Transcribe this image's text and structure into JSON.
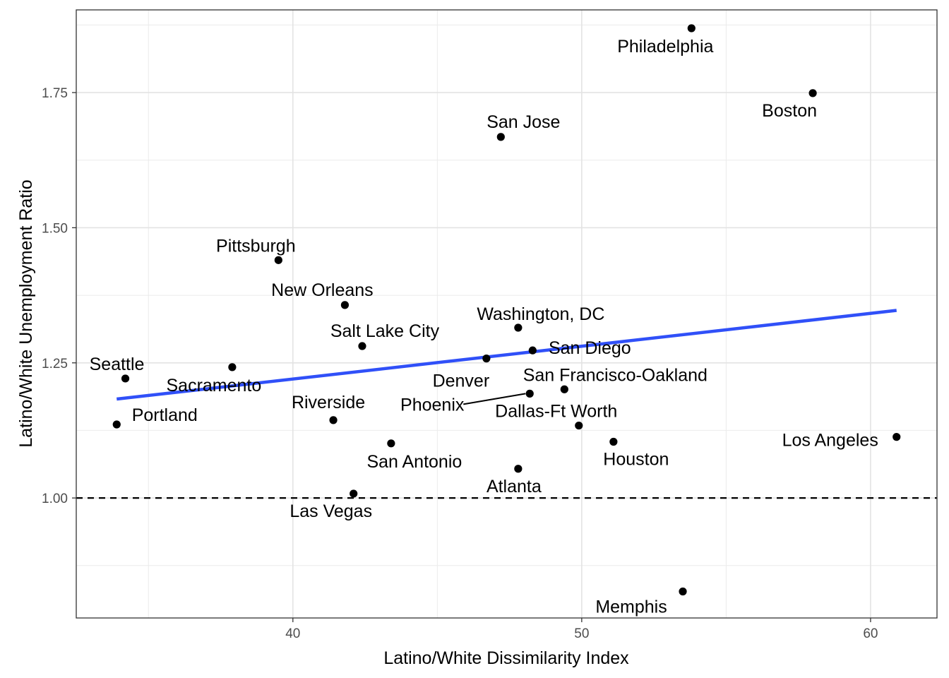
{
  "chart_data": {
    "type": "scatter",
    "title": "",
    "xlabel": "Latino/White Dissimilarity Index",
    "ylabel": "Latino/White Unemployment Ratio",
    "xlim": [
      32.5,
      62.3
    ],
    "ylim": [
      0.778,
      1.903
    ],
    "xticks": [
      40,
      50,
      60
    ],
    "xtick_labels": [
      "40",
      "50",
      "60"
    ],
    "yticks": [
      1.0,
      1.25,
      1.5,
      1.75
    ],
    "ytick_labels": [
      "1.00",
      "1.25",
      "1.50",
      "1.75"
    ],
    "grid": true,
    "theme": "bw",
    "reference_line": {
      "y": 1.0,
      "style": "dashed",
      "color": "#000000"
    },
    "trend_line": {
      "x": [
        33.9,
        60.9
      ],
      "y": [
        1.183,
        1.347
      ],
      "color": "#3050f8"
    },
    "point_color": "#000000",
    "points": [
      {
        "label": "Philadelphia",
        "x": 53.8,
        "y": 1.869
      },
      {
        "label": "Boston",
        "x": 58.0,
        "y": 1.749
      },
      {
        "label": "San Jose",
        "x": 47.2,
        "y": 1.668
      },
      {
        "label": "Pittsburgh",
        "x": 39.5,
        "y": 1.44
      },
      {
        "label": "New Orleans",
        "x": 41.8,
        "y": 1.357
      },
      {
        "label": "Washington, DC",
        "x": 47.8,
        "y": 1.315
      },
      {
        "label": "Salt Lake City",
        "x": 42.4,
        "y": 1.281
      },
      {
        "label": "San Diego",
        "x": 48.3,
        "y": 1.273
      },
      {
        "label": "Denver",
        "x": 46.7,
        "y": 1.258
      },
      {
        "label": "Seattle",
        "x": 34.2,
        "y": 1.221
      },
      {
        "label": "Sacramento",
        "x": 37.9,
        "y": 1.242
      },
      {
        "label": "San Francisco-Oakland",
        "x": 49.4,
        "y": 1.201
      },
      {
        "label": "Phoenix",
        "x": 48.2,
        "y": 1.193
      },
      {
        "label": "Portland",
        "x": 33.9,
        "y": 1.136
      },
      {
        "label": "Riverside",
        "x": 41.4,
        "y": 1.144
      },
      {
        "label": "Dallas-Ft Worth",
        "x": 49.9,
        "y": 1.134
      },
      {
        "label": "Los Angeles",
        "x": 60.9,
        "y": 1.113
      },
      {
        "label": "Houston",
        "x": 51.1,
        "y": 1.104
      },
      {
        "label": "San Antonio",
        "x": 43.4,
        "y": 1.101
      },
      {
        "label": "Atlanta",
        "x": 47.8,
        "y": 1.054
      },
      {
        "label": "Las Vegas",
        "x": 42.1,
        "y": 1.008
      },
      {
        "label": "Memphis",
        "x": 53.5,
        "y": 0.827
      }
    ]
  }
}
